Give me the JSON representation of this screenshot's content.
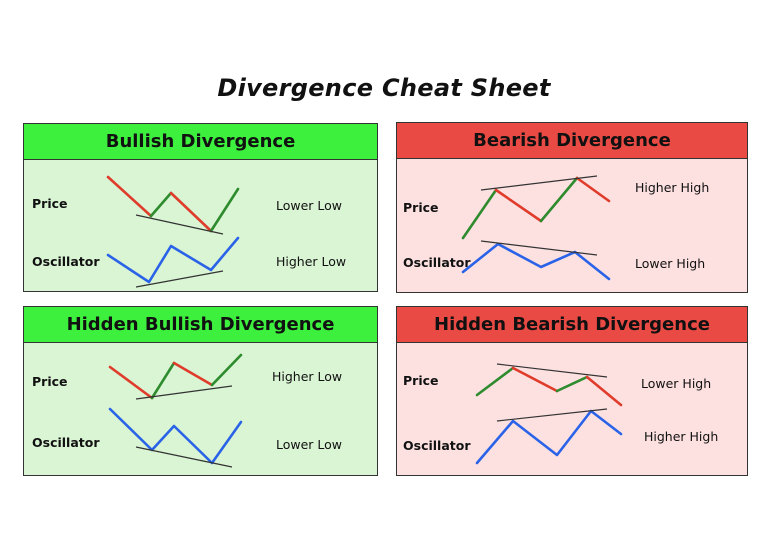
{
  "title": "Divergence Cheat Sheet",
  "colors": {
    "bull_header": "#3ef03e",
    "bull_body": "#d9f5d3",
    "bear_header": "#ea4a44",
    "bear_body": "#fde1e1",
    "up_segment": "#2e8b2e",
    "down_segment": "#e03c2c",
    "oscillator": "#2a63e8",
    "trendline": "#333333"
  },
  "panels": {
    "bullish": {
      "heading": "Bullish Divergence",
      "price_label": "Price",
      "price_note": "Lower Low",
      "osc_label": "Oscillator",
      "osc_note": "Higher Low"
    },
    "bearish": {
      "heading": "Bearish Divergence",
      "price_label": "Price",
      "price_note": "Higher High",
      "osc_label": "Oscillator",
      "osc_note": "Lower High"
    },
    "hidden_bullish": {
      "heading": "Hidden Bullish Divergence",
      "price_label": "Price",
      "price_note": "Higher Low",
      "osc_label": "Oscillator",
      "osc_note": "Lower Low"
    },
    "hidden_bearish": {
      "heading": "Hidden Bearish Divergence",
      "price_label": "Price",
      "price_note": "Lower High",
      "osc_label": "Oscillator",
      "osc_note": "Higher High"
    }
  }
}
